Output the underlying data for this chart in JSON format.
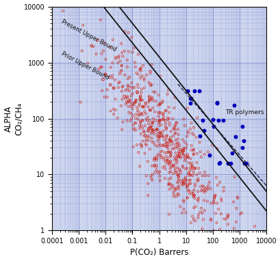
{
  "title": "",
  "xlabel": "P(CO₂) Barrers",
  "ylabel": "ALPHA\nCO₂/CH₄",
  "xlim": [
    0.0001,
    10000.0
  ],
  "ylim": [
    1,
    10000.0
  ],
  "background_color": "#cdd5ee",
  "grid_color": "#7788cc",
  "prior_upper_bound_label": "Prior Upper Bound",
  "present_upper_bound_label": "Present Upper Bound",
  "tr_polymers_label": "TR polymers",
  "slope": -0.6,
  "prior_intercept": 2.75,
  "present_intercept": 3.1,
  "dashed_intercept": 3.0,
  "dashed_slope": -0.55,
  "red_seed": 42,
  "blue_seed": 7,
  "red_color": "#cc1100",
  "blue_color": "#0000bb",
  "line_solid_color": "#111111",
  "line_dashed_color": "#222244"
}
